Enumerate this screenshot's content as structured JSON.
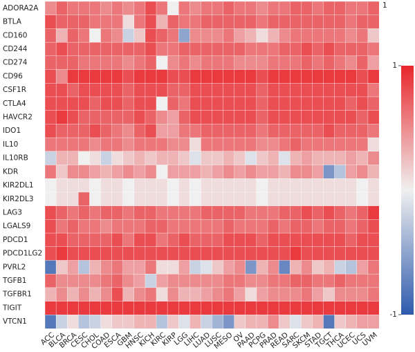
{
  "chart_data": {
    "type": "heatmap",
    "rows": [
      "ADORA2A",
      "BTLA",
      "CD160",
      "CD244",
      "CD274",
      "CD96",
      "CSF1R",
      "CTLA4",
      "HAVCR2",
      "IDO1",
      "IL10",
      "IL10RB",
      "KDR",
      "KIR2DL1",
      "KIR2DL3",
      "LAG3",
      "LGALS9",
      "PDCD1",
      "PDCD1LG2",
      "PVRL2",
      "TGFB1",
      "TGFBR1",
      "TIGIT",
      "VTCN1"
    ],
    "categories": [
      "ACC",
      "BLCA",
      "BRCA",
      "CESC",
      "CHOL",
      "COAD",
      "ESCA",
      "GBM",
      "HNSC",
      "KICH",
      "KIRC",
      "KIRP",
      "LGG",
      "LIHC",
      "LUAD",
      "LUSC",
      "MESO",
      "OV",
      "PAAD",
      "PCPG",
      "PRAD",
      "READ",
      "SARC",
      "SKCM",
      "STAD",
      "TGCT",
      "THCA",
      "UCEC",
      "UCS",
      "UVM"
    ],
    "z": [
      [
        0.5,
        0.7,
        0.6,
        0.6,
        0.6,
        0.5,
        0.6,
        0.5,
        0.6,
        0.8,
        0.6,
        0.0,
        0.6,
        0.5,
        0.6,
        0.6,
        0.7,
        0.6,
        0.6,
        0.5,
        0.6,
        0.6,
        0.7,
        0.7,
        0.6,
        0.7,
        0.7,
        0.6,
        0.6,
        0.7
      ],
      [
        0.8,
        0.7,
        0.7,
        0.7,
        0.6,
        0.6,
        0.6,
        0.1,
        0.6,
        0.8,
        0.3,
        0.7,
        0.6,
        0.6,
        0.7,
        0.7,
        0.7,
        0.7,
        0.7,
        0.6,
        0.7,
        0.7,
        0.7,
        0.7,
        0.7,
        0.7,
        0.7,
        0.6,
        0.7,
        0.7
      ],
      [
        0.7,
        0.3,
        0.7,
        0.6,
        0.0,
        0.6,
        0.5,
        -0.2,
        0.2,
        0.8,
        0.7,
        0.6,
        -0.5,
        0.5,
        0.5,
        0.5,
        0.6,
        0.4,
        0.3,
        0.1,
        0.3,
        0.5,
        0.6,
        0.6,
        0.6,
        0.6,
        0.6,
        0.5,
        0.6,
        0.2
      ],
      [
        0.7,
        0.8,
        0.7,
        0.7,
        0.7,
        0.7,
        0.7,
        0.7,
        0.7,
        0.8,
        0.6,
        0.6,
        0.7,
        0.7,
        0.7,
        0.7,
        0.7,
        0.7,
        0.6,
        0.6,
        0.6,
        0.7,
        0.7,
        0.8,
        0.7,
        0.8,
        0.7,
        0.7,
        0.7,
        0.6
      ],
      [
        0.7,
        0.7,
        0.7,
        0.6,
        0.6,
        0.6,
        0.6,
        0.5,
        0.6,
        0.7,
        0.0,
        0.5,
        0.6,
        0.5,
        0.6,
        0.6,
        0.6,
        0.5,
        0.5,
        0.5,
        0.6,
        0.6,
        0.6,
        0.7,
        0.6,
        0.7,
        0.6,
        0.5,
        0.7,
        0.4
      ],
      [
        0.8,
        0.5,
        0.9,
        0.9,
        0.9,
        0.9,
        0.9,
        0.8,
        0.9,
        0.9,
        0.9,
        0.8,
        0.8,
        0.9,
        0.9,
        0.9,
        0.9,
        0.9,
        0.9,
        0.8,
        0.9,
        0.9,
        0.9,
        0.9,
        0.9,
        0.9,
        0.9,
        0.9,
        0.8,
        0.9
      ],
      [
        0.8,
        0.8,
        0.7,
        0.8,
        0.8,
        0.8,
        0.8,
        0.7,
        0.8,
        0.8,
        0.8,
        0.7,
        0.7,
        0.8,
        0.8,
        0.8,
        0.8,
        0.8,
        0.8,
        0.7,
        0.8,
        0.8,
        0.8,
        0.8,
        0.8,
        0.8,
        0.8,
        0.8,
        0.8,
        0.6
      ],
      [
        0.8,
        0.8,
        0.8,
        0.8,
        0.7,
        0.8,
        0.8,
        0.7,
        0.8,
        0.8,
        0.0,
        0.7,
        0.6,
        0.8,
        0.8,
        0.8,
        0.8,
        0.8,
        0.8,
        0.7,
        0.8,
        0.8,
        0.8,
        0.8,
        0.8,
        0.8,
        0.8,
        0.7,
        0.8,
        0.7
      ],
      [
        0.8,
        0.9,
        0.8,
        0.7,
        0.7,
        0.7,
        0.7,
        0.7,
        0.8,
        0.7,
        0.5,
        0.4,
        0.7,
        0.8,
        0.8,
        0.8,
        0.8,
        0.8,
        0.8,
        0.7,
        0.8,
        0.8,
        0.8,
        0.8,
        0.8,
        0.8,
        0.8,
        0.8,
        0.7,
        0.8
      ],
      [
        0.8,
        0.7,
        0.7,
        0.7,
        0.8,
        0.7,
        0.6,
        0.5,
        0.7,
        0.8,
        0.4,
        0.4,
        0.6,
        0.6,
        0.7,
        0.7,
        0.7,
        0.7,
        0.7,
        0.6,
        0.7,
        0.7,
        0.7,
        0.7,
        0.7,
        0.8,
        0.7,
        0.7,
        0.7,
        0.6
      ],
      [
        0.6,
        0.6,
        0.6,
        0.6,
        0.5,
        0.6,
        0.6,
        0.5,
        0.6,
        0.6,
        0.6,
        0.5,
        0.5,
        0.1,
        0.6,
        0.6,
        0.6,
        0.6,
        0.6,
        0.5,
        0.5,
        0.6,
        0.7,
        0.6,
        0.6,
        0.6,
        0.6,
        0.6,
        0.6,
        0.1
      ],
      [
        -0.2,
        0.3,
        0.3,
        0.0,
        0.1,
        -0.2,
        0.1,
        0.2,
        0.3,
        0.2,
        0.3,
        0.3,
        0.2,
        -0.1,
        0.2,
        0.2,
        0.3,
        0.2,
        -0.1,
        0.2,
        0.3,
        -0.1,
        0.3,
        0.4,
        0.3,
        0.3,
        0.3,
        0.4,
        0.3,
        0.5
      ],
      [
        0.6,
        0.2,
        0.5,
        0.5,
        0.4,
        0.3,
        0.4,
        0.5,
        0.4,
        0.5,
        0.0,
        0.4,
        0.4,
        0.4,
        0.3,
        0.4,
        0.5,
        0.4,
        0.5,
        0.4,
        0.4,
        0.3,
        0.5,
        0.5,
        0.4,
        -0.6,
        -0.3,
        0.4,
        0.5,
        0.3
      ],
      [
        0.0,
        0.1,
        0.1,
        0.1,
        0.0,
        0.1,
        0.1,
        0.0,
        0.1,
        0.1,
        0.1,
        0.0,
        0.1,
        0.0,
        0.1,
        0.1,
        0.1,
        0.1,
        0.1,
        0.0,
        0.1,
        0.1,
        0.1,
        0.1,
        0.1,
        0.1,
        0.1,
        0.1,
        0.0,
        0.1
      ],
      [
        0.0,
        0.1,
        0.1,
        0.7,
        0.0,
        0.1,
        0.1,
        0.0,
        0.1,
        0.1,
        0.1,
        0.0,
        0.1,
        0.0,
        0.1,
        0.1,
        0.1,
        0.1,
        0.1,
        0.0,
        0.1,
        0.1,
        0.1,
        0.1,
        0.1,
        0.1,
        0.1,
        0.1,
        0.0,
        0.1
      ],
      [
        0.8,
        0.7,
        0.6,
        0.7,
        0.6,
        0.7,
        0.7,
        0.6,
        0.7,
        0.7,
        0.6,
        0.6,
        0.6,
        0.6,
        0.7,
        0.7,
        0.7,
        0.7,
        0.6,
        0.6,
        0.6,
        0.7,
        0.7,
        0.8,
        0.7,
        0.8,
        0.7,
        0.6,
        0.7,
        0.9
      ],
      [
        0.8,
        0.6,
        0.7,
        0.6,
        0.6,
        0.5,
        0.6,
        0.6,
        0.6,
        0.7,
        0.7,
        0.6,
        0.6,
        0.6,
        0.6,
        0.6,
        0.7,
        0.6,
        0.6,
        0.6,
        0.7,
        0.6,
        0.7,
        0.7,
        0.6,
        0.7,
        0.7,
        0.6,
        0.7,
        0.8
      ],
      [
        0.8,
        0.8,
        0.7,
        0.7,
        0.7,
        0.7,
        0.8,
        0.6,
        0.8,
        0.8,
        0.6,
        0.7,
        0.8,
        0.7,
        0.7,
        0.7,
        0.8,
        0.8,
        0.8,
        0.7,
        0.8,
        0.8,
        0.8,
        0.8,
        0.8,
        0.8,
        0.8,
        0.7,
        0.8,
        0.8
      ],
      [
        0.8,
        0.9,
        0.8,
        0.8,
        0.8,
        0.8,
        0.8,
        0.8,
        0.8,
        0.8,
        0.8,
        0.8,
        0.8,
        0.8,
        0.8,
        0.8,
        0.8,
        0.8,
        0.8,
        0.8,
        0.8,
        0.8,
        0.9,
        0.8,
        0.8,
        0.8,
        0.8,
        0.8,
        0.8,
        0.8
      ],
      [
        -0.8,
        0.2,
        0.4,
        -0.3,
        0.3,
        0.5,
        0.6,
        0.4,
        0.4,
        0.6,
        0.1,
        0.1,
        0.4,
        -0.2,
        -0.1,
        0.2,
        0.4,
        0.5,
        -0.6,
        0.3,
        0.5,
        -0.7,
        0.3,
        0.5,
        0.2,
        0.3,
        -0.2,
        -0.3,
        0.4,
        0.6
      ],
      [
        0.7,
        0.5,
        0.5,
        0.5,
        0.5,
        0.6,
        0.7,
        0.5,
        0.4,
        -0.2,
        0.4,
        0.5,
        0.5,
        0.5,
        0.5,
        0.5,
        0.6,
        0.6,
        0.5,
        0.5,
        0.6,
        0.6,
        0.7,
        0.7,
        0.6,
        0.6,
        0.7,
        0.6,
        0.6,
        0.6
      ],
      [
        0.3,
        0.5,
        0.3,
        0.5,
        0.3,
        0.5,
        0.8,
        0.3,
        0.5,
        0.6,
        0.1,
        0.5,
        0.3,
        0.3,
        0.4,
        0.5,
        0.6,
        0.4,
        0.1,
        0.4,
        0.5,
        0.5,
        0.5,
        0.6,
        0.4,
        0.2,
        0.5,
        0.5,
        0.5,
        0.6
      ],
      [
        0.9,
        0.9,
        0.9,
        0.9,
        0.9,
        0.9,
        0.9,
        0.9,
        0.9,
        0.9,
        0.9,
        0.9,
        0.9,
        0.9,
        0.9,
        0.9,
        0.9,
        0.9,
        0.9,
        0.9,
        0.9,
        0.9,
        0.9,
        0.9,
        0.9,
        0.9,
        0.9,
        0.9,
        0.9,
        0.9
      ],
      [
        -0.8,
        -0.2,
        0.1,
        -0.3,
        -0.2,
        0.1,
        0.2,
        0.2,
        0.3,
        0.3,
        -0.3,
        0.2,
        -0.1,
        0.3,
        -0.2,
        -0.4,
        -0.6,
        0.2,
        0.3,
        0.3,
        0.5,
        0.2,
        -0.1,
        0.2,
        0.3,
        -0.8,
        0.2,
        0.3,
        0.4,
        0.4
      ]
    ],
    "zlim": [
      -1,
      1
    ],
    "zticks": [
      1,
      -1
    ],
    "annotation": "1",
    "low_color": "#2e5aac",
    "mid_color": "#f0f0f0",
    "high_color": "#e8262b"
  }
}
